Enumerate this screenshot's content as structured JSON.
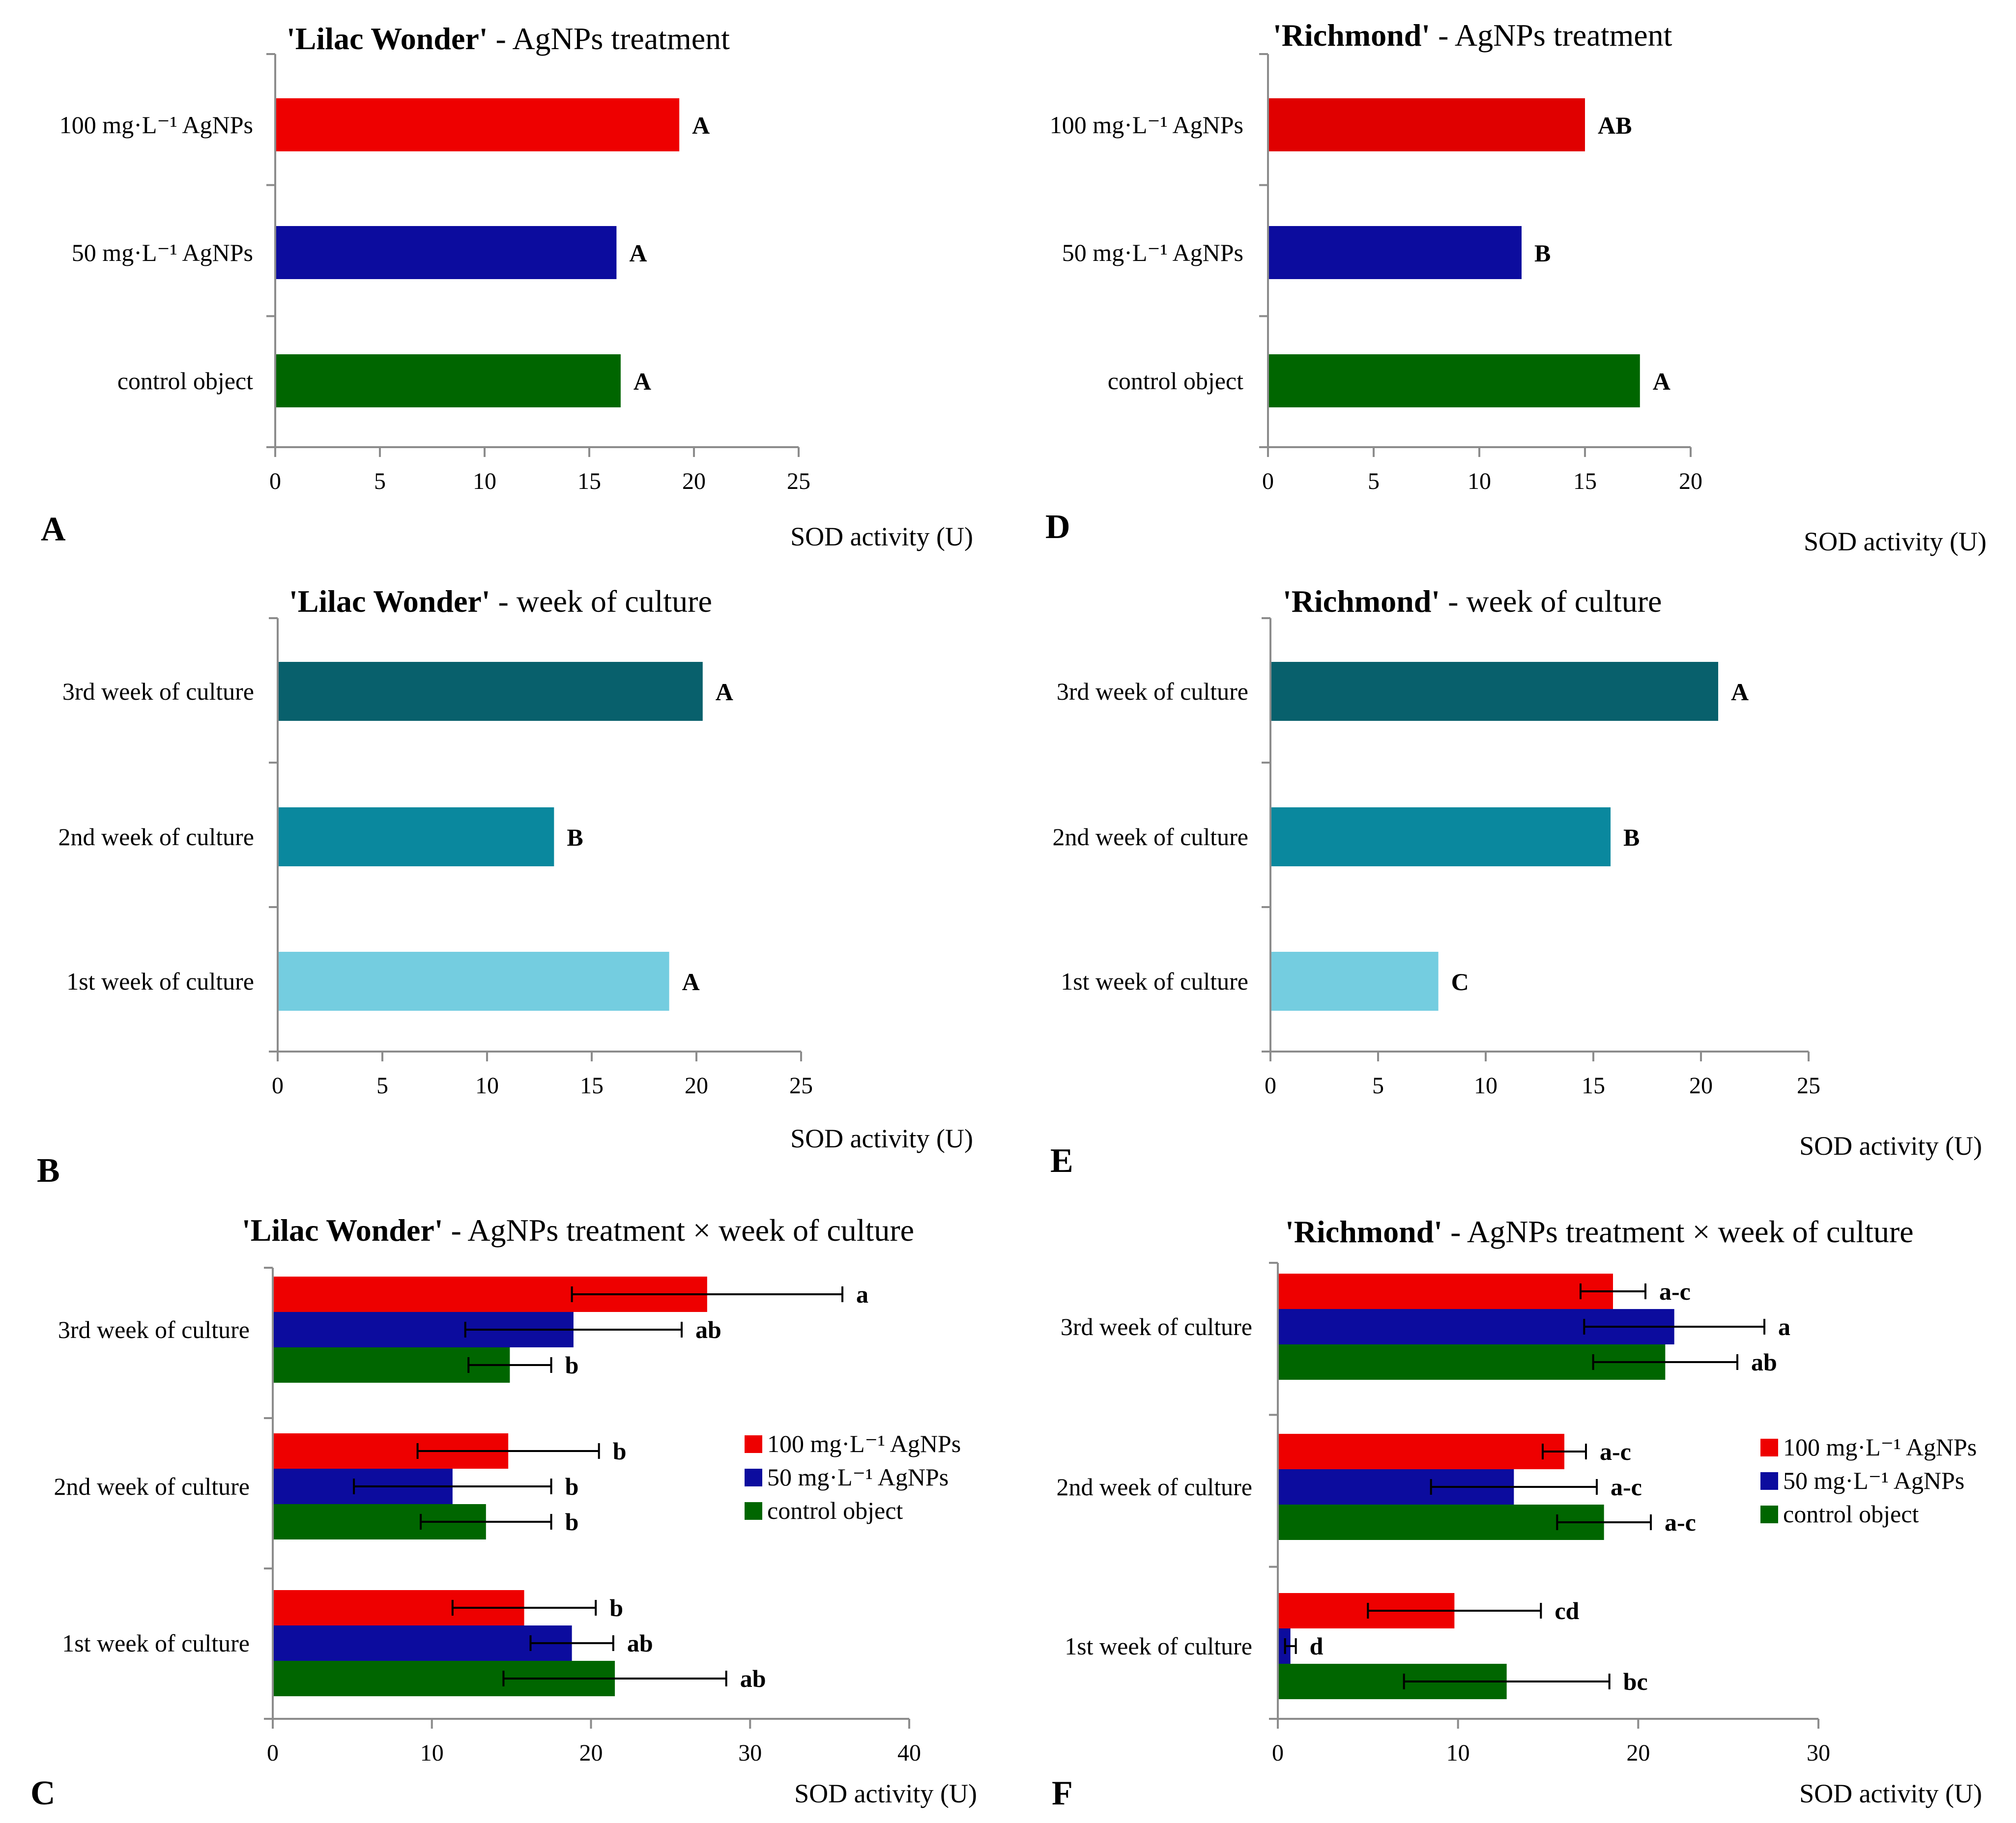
{
  "figure": {
    "background": "#ffffff"
  },
  "colors": {
    "red": "#ee0000",
    "red_dark": "#e00000",
    "blue": "#0c0c9e",
    "green": "#006600",
    "teal_dark": "#08606c",
    "teal_mid": "#0a889e",
    "teal_light": "#74cde0"
  },
  "chart_data": [
    {
      "id": "A",
      "panel_letter": "A",
      "type": "bar",
      "orientation": "horizontal",
      "title_bold": "'Lilac Wonder'",
      "title_rest": " - AgNPs treatment",
      "xlabel": "SOD activity (U)",
      "xlim": [
        0,
        25
      ],
      "xticks": [
        "0",
        "5",
        "10",
        "15",
        "20",
        "25"
      ],
      "categories": [
        "100 mg·L⁻¹  AgNPs",
        "50 mg·L⁻¹  AgNPs",
        "control object"
      ],
      "values": [
        19.3,
        16.3,
        16.5
      ],
      "colors": [
        "#ee0000",
        "#0c0c9e",
        "#006600"
      ],
      "labels": [
        "A",
        "A",
        "A"
      ]
    },
    {
      "id": "D",
      "panel_letter": "D",
      "type": "bar",
      "orientation": "horizontal",
      "title_bold": "'Richmond'",
      "title_rest": " - AgNPs treatment",
      "xlabel": "SOD activity (U)",
      "xlim": [
        0,
        20
      ],
      "xticks": [
        "0",
        "5",
        "10",
        "15",
        "20"
      ],
      "categories": [
        "100 mg·L⁻¹  AgNPs",
        "50 mg·L⁻¹  AgNPs",
        "control object"
      ],
      "values": [
        15.0,
        12.0,
        17.6
      ],
      "colors": [
        "#e00000",
        "#0c0c9e",
        "#006600"
      ],
      "labels": [
        "AB",
        "B",
        "A"
      ]
    },
    {
      "id": "B",
      "panel_letter": "B",
      "type": "bar",
      "orientation": "horizontal",
      "title_bold": "'Lilac Wonder'",
      "title_rest": " - week of culture",
      "xlabel": "SOD activity (U)",
      "xlim": [
        0,
        25
      ],
      "xticks": [
        "0",
        "5",
        "10",
        "15",
        "20",
        "25"
      ],
      "categories": [
        "3rd week of culture",
        "2nd week of culture",
        "1st week of culture"
      ],
      "values": [
        20.3,
        13.2,
        18.7
      ],
      "colors": [
        "#08606c",
        "#0a889e",
        "#74cde0"
      ],
      "labels": [
        "A",
        "B",
        "A"
      ]
    },
    {
      "id": "E",
      "panel_letter": "E",
      "type": "bar",
      "orientation": "horizontal",
      "title_bold": "'Richmond'",
      "title_rest": " - week of culture",
      "xlabel": "SOD activity (U)",
      "xlim": [
        0,
        25
      ],
      "xticks": [
        "0",
        "5",
        "10",
        "15",
        "20",
        "25"
      ],
      "categories": [
        "3rd week of culture",
        "2nd week of culture",
        "1st week of culture"
      ],
      "values": [
        20.8,
        15.8,
        7.8
      ],
      "colors": [
        "#08606c",
        "#0a889e",
        "#74cde0"
      ],
      "labels": [
        "A",
        "B",
        "C"
      ]
    },
    {
      "id": "C",
      "panel_letter": "C",
      "type": "bar",
      "orientation": "horizontal",
      "grouped": true,
      "title_bold": "'Lilac Wonder'",
      "title_rest": " - AgNPs treatment × week of culture",
      "xlabel": "SOD activity (U)",
      "xlim": [
        0,
        40
      ],
      "xticks": [
        "0",
        "10",
        "20",
        "30",
        "40"
      ],
      "categories": [
        "3rd week of culture",
        "2nd week of culture",
        "1st week of culture"
      ],
      "series": [
        {
          "name": "100 mg·L⁻¹  AgNPs",
          "color": "#ee0000",
          "values": [
            27.3,
            14.8,
            15.8
          ],
          "errors": [
            8.5,
            5.7,
            4.5
          ],
          "labels": [
            "a",
            "b",
            "b"
          ]
        },
        {
          "name": "50 mg·L⁻¹  AgNPs",
          "color": "#0c0c9e",
          "values": [
            18.9,
            11.3,
            18.8
          ],
          "errors": [
            6.8,
            6.2,
            2.6
          ],
          "labels": [
            "ab",
            "b",
            "ab"
          ]
        },
        {
          "name": "control object",
          "color": "#006600",
          "values": [
            14.9,
            13.4,
            21.5
          ],
          "errors": [
            2.6,
            4.1,
            7.0
          ],
          "labels": [
            "b",
            "b",
            "ab"
          ]
        }
      ],
      "legend": [
        "100 mg·L⁻¹  AgNPs",
        "50 mg·L⁻¹  AgNPs",
        "control object"
      ]
    },
    {
      "id": "F",
      "panel_letter": "F",
      "type": "bar",
      "orientation": "horizontal",
      "grouped": true,
      "title_bold": "'Richmond'",
      "title_rest": " - AgNPs treatment × week of culture",
      "xlabel": "SOD activity (U)",
      "xlim": [
        0,
        30
      ],
      "xticks": [
        "0",
        "10",
        "20",
        "30"
      ],
      "categories": [
        "3rd week of culture",
        "2nd week of culture",
        "1st week of culture"
      ],
      "series": [
        {
          "name": "100 mg·L⁻¹  AgNPs",
          "color": "#ee0000",
          "values": [
            18.6,
            15.9,
            9.8
          ],
          "errors": [
            1.8,
            1.2,
            4.8
          ],
          "labels": [
            "a-c",
            "a-c",
            "cd"
          ]
        },
        {
          "name": "50 mg·L⁻¹  AgNPs",
          "color": "#0c0c9e",
          "values": [
            22.0,
            13.1,
            0.7
          ],
          "errors": [
            5.0,
            4.6,
            0.3
          ],
          "labels": [
            "a",
            "a-c",
            "d"
          ]
        },
        {
          "name": "control object",
          "color": "#006600",
          "values": [
            21.5,
            18.1,
            12.7
          ],
          "errors": [
            4.0,
            2.6,
            5.7
          ],
          "labels": [
            "ab",
            "a-c",
            "bc"
          ]
        }
      ],
      "legend": [
        "100 mg·L⁻¹  AgNPs",
        "50 mg·L⁻¹  AgNPs",
        "control object"
      ]
    }
  ]
}
